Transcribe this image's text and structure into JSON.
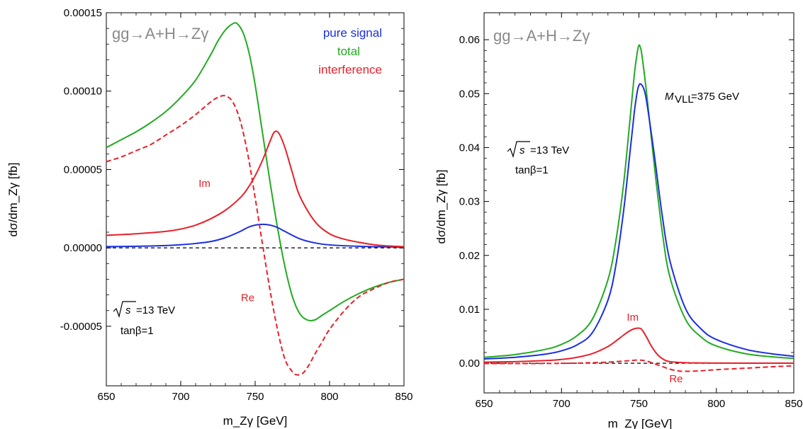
{
  "chart_data": [
    {
      "type": "line",
      "title": "gg→A+H→Zγ",
      "xlabel": "m_Zγ [GeV]",
      "ylabel": "dσ/dm_Zγ [fb]",
      "xlim": [
        650,
        850
      ],
      "ylim": [
        -8.8e-05,
        0.00015
      ],
      "xticks": [
        650,
        700,
        750,
        800,
        850
      ],
      "xtick_labels": [
        "650",
        "700",
        "750",
        "800",
        "850"
      ],
      "yticks": [
        -5e-05,
        0,
        5e-05,
        0.0001,
        0.00015
      ],
      "ytick_labels": [
        "-0.00005",
        "0.00000",
        "0.00005",
        "0.00010",
        "0.00015"
      ],
      "legend": {
        "placement": "top-right",
        "entries": [
          {
            "label": "pure signal",
            "color": "#1a2fe0"
          },
          {
            "label": "total",
            "color": "#22aa22"
          },
          {
            "label": "interference",
            "color": "#e8202a"
          }
        ]
      },
      "annotations": {
        "sqrt_s": "=13 TeV",
        "tanb": "tanβ=1"
      },
      "series": [
        {
          "name": "total",
          "color": "#22aa22",
          "dash": false,
          "x": [
            650,
            660,
            670,
            680,
            690,
            700,
            710,
            720,
            725,
            730,
            735,
            738,
            742,
            746,
            750,
            755,
            760,
            765,
            770,
            775,
            780,
            785,
            790,
            795,
            800,
            810,
            820,
            830,
            840,
            850
          ],
          "y": [
            6.4e-05,
            6.9e-05,
            7.4e-05,
            8e-05,
            8.7e-05,
            9.6e-05,
            0.000107,
            0.000123,
            0.000132,
            0.000139,
            0.000143,
            0.000143,
            0.000137,
            0.000124,
            0.000104,
            7.3e-05,
            4.2e-05,
            1.3e-05,
            -1.2e-05,
            -3.1e-05,
            -4.2e-05,
            -4.6e-05,
            -4.6e-05,
            -4.3e-05,
            -4e-05,
            -3.4e-05,
            -2.9e-05,
            -2.5e-05,
            -2.2e-05,
            -2e-05
          ]
        },
        {
          "name": "pure signal",
          "color": "#1a2fe0",
          "dash": false,
          "x": [
            650,
            670,
            690,
            700,
            710,
            720,
            730,
            740,
            745,
            750,
            755,
            760,
            765,
            770,
            780,
            790,
            800,
            820,
            840,
            850
          ],
          "y": [
            8e-07,
            1e-06,
            1.5e-06,
            2e-06,
            2.8e-06,
            4e-06,
            6.5e-06,
            1.05e-05,
            1.3e-05,
            1.45e-05,
            1.5e-05,
            1.45e-05,
            1.3e-05,
            1.05e-05,
            5.8e-06,
            3.2e-06,
            1.9e-06,
            1e-06,
            6e-07,
            5e-07
          ]
        },
        {
          "name": "interference Im",
          "color": "#e8202a",
          "dash": false,
          "x": [
            650,
            670,
            690,
            700,
            710,
            720,
            730,
            740,
            745,
            750,
            755,
            760,
            763,
            766,
            770,
            775,
            780,
            790,
            800,
            810,
            820,
            830,
            840,
            850
          ],
          "y": [
            8e-06,
            9e-06,
            1.05e-05,
            1.2e-05,
            1.45e-05,
            1.85e-05,
            2.4e-05,
            3.2e-05,
            3.8e-05,
            4.6e-05,
            5.6e-05,
            6.8e-05,
            7.4e-05,
            7.3e-05,
            6.4e-05,
            4.8e-05,
            3.3e-05,
            1.7e-05,
            9e-06,
            5.5e-06,
            3.5e-06,
            2e-06,
            1.2e-06,
            8e-07
          ]
        },
        {
          "name": "interference Re",
          "color": "#e8202a",
          "dash": true,
          "x": [
            650,
            660,
            670,
            680,
            690,
            700,
            710,
            720,
            725,
            730,
            735,
            740,
            745,
            750,
            755,
            760,
            765,
            770,
            775,
            778,
            782,
            786,
            790,
            795,
            800,
            810,
            820,
            830,
            840,
            850
          ],
          "y": [
            5.5e-05,
            5.8e-05,
            6.2e-05,
            6.6e-05,
            7.2e-05,
            7.8e-05,
            8.5e-05,
            9.3e-05,
            9.6e-05,
            9.7e-05,
            9.3e-05,
            8.1e-05,
            6e-05,
            3.2e-05,
            2e-06,
            -2.7e-05,
            -5.2e-05,
            -7.1e-05,
            -7.9e-05,
            -8.1e-05,
            -8e-05,
            -7.5e-05,
            -6.8e-05,
            -6e-05,
            -5.2e-05,
            -4e-05,
            -3.1e-05,
            -2.6e-05,
            -2.2e-05,
            -2e-05
          ]
        }
      ],
      "curve_labels": [
        {
          "text": "Im",
          "x": 716,
          "y": 3.9e-05,
          "color": "#e8202a"
        },
        {
          "text": "Re",
          "x": 745,
          "y": -3.4e-05,
          "color": "#e8202a"
        }
      ],
      "zero_line": {
        "style": "dashed",
        "color": "#000000"
      }
    },
    {
      "type": "line",
      "title": "gg→A+H→Zγ",
      "xlabel": "m_Zγ [GeV]",
      "ylabel": "dσ/dm_Zγ [fb]",
      "xlim": [
        650,
        850
      ],
      "ylim": [
        -0.0055,
        0.065
      ],
      "xticks": [
        650,
        700,
        750,
        800,
        850
      ],
      "xtick_labels": [
        "650",
        "700",
        "750",
        "800",
        "850"
      ],
      "yticks": [
        0,
        0.01,
        0.02,
        0.03,
        0.04,
        0.05,
        0.06
      ],
      "ytick_labels": [
        "0.00",
        "0.01",
        "0.02",
        "0.03",
        "0.04",
        "0.05",
        "0.06"
      ],
      "annotations": {
        "mvll": "=375 GeV",
        "sqrt_s": "=13 TeV",
        "tanb": "tanβ=1"
      },
      "series": [
        {
          "name": "total",
          "color": "#22aa22",
          "dash": false,
          "x": [
            650,
            670,
            690,
            700,
            710,
            720,
            730,
            735,
            740,
            744,
            747,
            749,
            750,
            751,
            752,
            755,
            760,
            765,
            770,
            780,
            790,
            800,
            820,
            840,
            850
          ],
          "y": [
            0.0011,
            0.0016,
            0.0026,
            0.0035,
            0.0051,
            0.0082,
            0.0155,
            0.0225,
            0.033,
            0.0445,
            0.0535,
            0.0578,
            0.059,
            0.0585,
            0.057,
            0.05,
            0.0365,
            0.0245,
            0.016,
            0.0082,
            0.0049,
            0.0032,
            0.0017,
            0.0011,
            0.0009
          ]
        },
        {
          "name": "pure signal",
          "color": "#1a2fe0",
          "dash": false,
          "x": [
            650,
            670,
            690,
            700,
            710,
            720,
            730,
            735,
            740,
            744,
            747,
            749,
            750,
            751,
            753,
            755,
            760,
            765,
            770,
            780,
            790,
            800,
            820,
            840,
            850
          ],
          "y": [
            0.0008,
            0.0011,
            0.0017,
            0.0023,
            0.0034,
            0.0057,
            0.0117,
            0.018,
            0.028,
            0.0385,
            0.0465,
            0.0505,
            0.0515,
            0.0518,
            0.051,
            0.0485,
            0.0385,
            0.0275,
            0.019,
            0.0102,
            0.0064,
            0.0044,
            0.0025,
            0.0016,
            0.0013
          ]
        },
        {
          "name": "interference Im",
          "color": "#e8202a",
          "dash": false,
          "x": [
            650,
            670,
            690,
            700,
            710,
            720,
            730,
            735,
            740,
            744,
            747,
            750,
            752,
            755,
            758,
            762,
            766,
            770,
            780,
            790,
            800,
            820,
            850
          ],
          "y": [
            0.0002,
            0.0003,
            0.0005,
            0.0007,
            0.0011,
            0.0018,
            0.0031,
            0.0041,
            0.0052,
            0.006,
            0.0064,
            0.0065,
            0.0062,
            0.0048,
            0.0032,
            0.0016,
            0.0007,
            0.0003,
            0.0001,
            5e-05,
            3e-05,
            2e-05,
            1e-05
          ]
        },
        {
          "name": "interference Re",
          "color": "#e8202a",
          "dash": true,
          "x": [
            650,
            670,
            690,
            700,
            710,
            720,
            730,
            740,
            745,
            750,
            755,
            760,
            765,
            770,
            775,
            780,
            790,
            800,
            820,
            840,
            850
          ],
          "y": [
            -5e-05,
            -5e-05,
            -4e-05,
            -2e-05,
            2e-05,
            0.0001,
            0.0002,
            0.0004,
            0.0005,
            0.0006,
            0.0004,
            -0.0001,
            -0.0006,
            -0.0011,
            -0.0014,
            -0.0015,
            -0.0014,
            -0.0012,
            -0.0009,
            -0.0006,
            -0.0005
          ]
        }
      ],
      "curve_labels": [
        {
          "text": "Im",
          "x": 746,
          "y": 0.0079,
          "color": "#e8202a"
        },
        {
          "text": "Re",
          "x": 774,
          "y": -0.0035,
          "color": "#e8202a"
        }
      ],
      "zero_line": {
        "style": "dashed",
        "color": "#000000"
      }
    }
  ]
}
